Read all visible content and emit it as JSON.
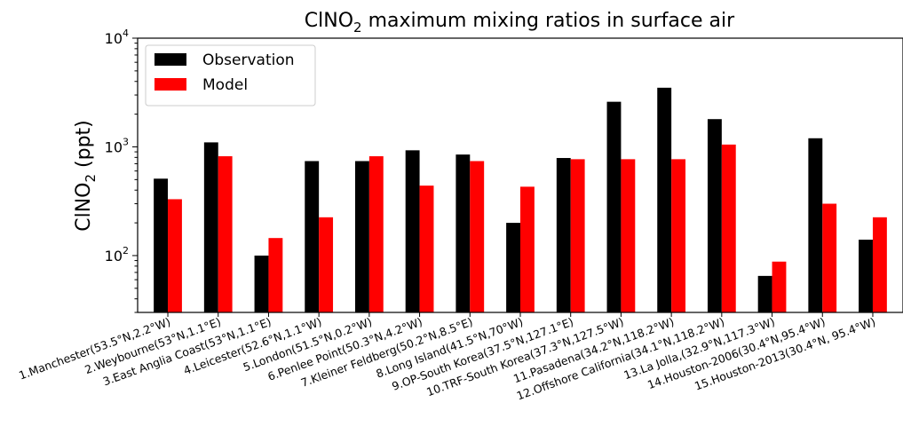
{
  "chart_data": {
    "type": "bar",
    "title_prefix": "ClNO",
    "title_sub": "2",
    "title_suffix": " maximum mixing ratios in surface air",
    "ylabel_prefix": "ClNO",
    "ylabel_sub": "2",
    "ylabel_suffix": " (ppt)",
    "yscale": "log",
    "ylim": [
      30,
      10000
    ],
    "yticks": [
      {
        "value": 100,
        "base": "10",
        "exp": "2"
      },
      {
        "value": 1000,
        "base": "10",
        "exp": "3"
      },
      {
        "value": 10000,
        "base": "10",
        "exp": "4"
      }
    ],
    "legend_placement": "top-left",
    "categories": [
      "1.Manchester(53.5°N,2.2°W)",
      "2.Weybourne(53°N,1.1°E)",
      "3.East Anglia Coast(53°N,1.1°E)",
      "4.Leicester(52.6°N,1.1°W)",
      "5.London(51.5°N,0.2°W)",
      "6.Penlee Point(50.3°N,4.2°W)",
      "7.Kleiner Feldberg(50.2°N,8.5°E)",
      "8.Long Island(41.5°N,70°W)",
      "9.OP-South Korea(37.5°N,127.1°E)",
      "10.TRF-South Korea(37.3°N,127.5°W)",
      "11.Pasadena(34.2°N,118.2°W)",
      "12.Offshore California(34.1°N,118.2°W)",
      "13.La Jolla,(32.9°N,117.3°W)",
      "14.Houston-2006(30.4°N,95.4°W)",
      "15.Houston-2013(30.4°N, 95.4°W)"
    ],
    "series": [
      {
        "name": "Observation",
        "color": "#000000",
        "values": [
          510,
          1100,
          100,
          740,
          740,
          930,
          850,
          200,
          790,
          2600,
          3500,
          1800,
          65,
          1200,
          140
        ]
      },
      {
        "name": "Model",
        "color": "#ff0000",
        "values": [
          330,
          820,
          145,
          225,
          820,
          440,
          740,
          430,
          770,
          770,
          770,
          1050,
          88,
          300,
          225
        ]
      }
    ]
  }
}
